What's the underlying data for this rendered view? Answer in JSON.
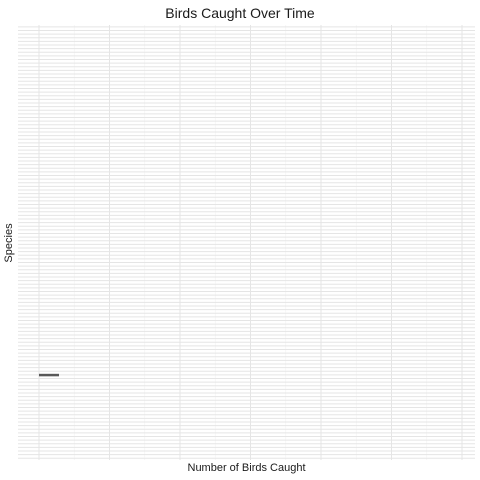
{
  "chart_data": {
    "type": "bar",
    "orientation": "horizontal",
    "title": "Birds Caught Over Time",
    "xlabel": "Number of Birds Caught",
    "ylabel": "Species",
    "category_count": 120,
    "highlighted_category_index": 96,
    "grid": true,
    "legend": "none",
    "colors": {
      "panel_background": "#ffffff",
      "gridline_major": "#e5e5e5",
      "gridline_minor": "#f2f2f2",
      "bar": "#595959"
    }
  }
}
